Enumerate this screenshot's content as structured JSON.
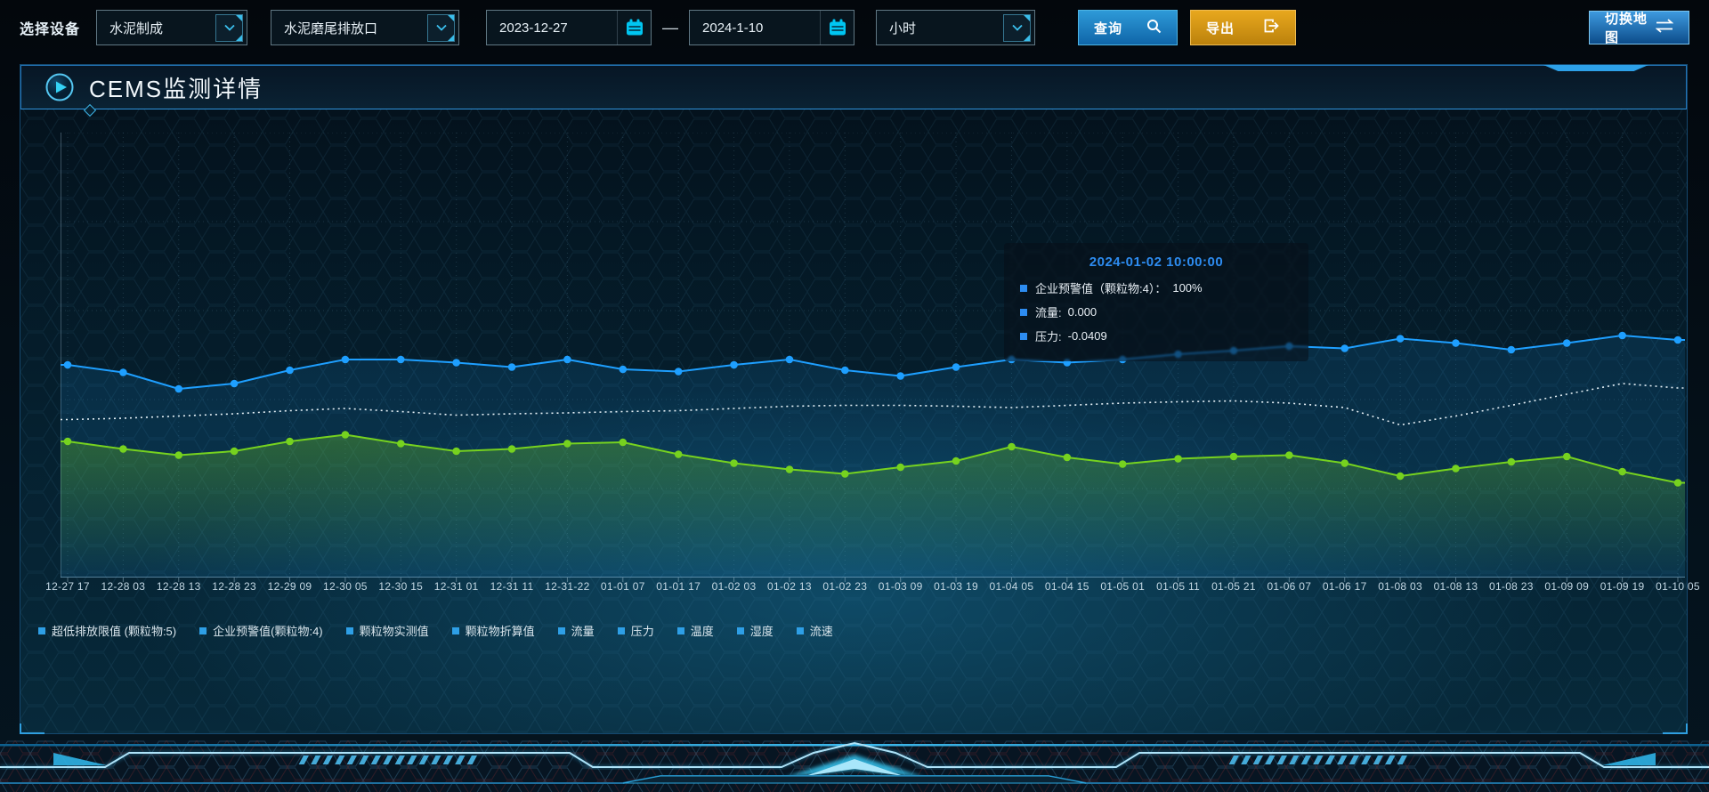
{
  "toolbar": {
    "device_label": "选择设备",
    "selects": [
      {
        "value": "水泥制成"
      },
      {
        "value": "水泥磨尾排放口"
      }
    ],
    "date_start": "2023-12-27",
    "date_separator": "—",
    "date_end": "2024-1-10",
    "interval_value": "小时",
    "query_button": "查询",
    "export_button": "导出",
    "switch_map_button": "切换地图"
  },
  "panel": {
    "title": "CEMS监测详情"
  },
  "tooltip": {
    "title": "2024-01-02 10:00:00",
    "marker_color": "#2d8cf0",
    "rows": [
      {
        "label": "企业预警值（颗粒物:4）：",
        "value": "100%"
      },
      {
        "label": "流量:",
        "value": "0.000"
      },
      {
        "label": "压力:",
        "value": "-0.0409"
      }
    ]
  },
  "chart_data": {
    "type": "line",
    "title": "CEMS监测详情",
    "xlabel": "",
    "ylabel": "",
    "ylim": [
      0,
      100
    ],
    "grid": true,
    "legend_position": "bottom",
    "x_labels": [
      "12-27 17",
      "12-28 03",
      "12-28 13",
      "12-28 23",
      "12-29 09",
      "12-30 05",
      "12-30 15",
      "12-31 01",
      "12-31 11",
      "12-31-22",
      "01-01 07",
      "01-01 17",
      "01-02 03",
      "01-02 13",
      "01-02 23",
      "01-03 09",
      "01-03 19",
      "01-04 05",
      "01-04 15",
      "01-05 01",
      "01-05 11",
      "01-05 21",
      "01-06 07",
      "01-06 17",
      "01-08 03",
      "01-08 13",
      "01-08 23",
      "01-09 09",
      "01-09 19",
      "01-10 05"
    ],
    "legend": [
      "超低排放限值 (颗粒物:5)",
      "企业预警值(颗粒物:4)",
      "颗粒物实测值",
      "颗粒物折算值",
      "流量",
      "压力",
      "温度",
      "湿度",
      "流速"
    ],
    "series": [
      {
        "name": "企业预警值(颗粒物:4)",
        "color": "#1e9fff",
        "style": "solid",
        "dots": true,
        "area": "flat",
        "values": [
          47.8,
          46.1,
          42.4,
          43.6,
          46.6,
          49.0,
          49.0,
          48.3,
          47.3,
          49.0,
          46.8,
          46.3,
          47.8,
          49.0,
          46.6,
          45.3,
          47.3,
          49.0,
          48.3,
          49.0,
          50.2,
          51.0,
          52.0,
          51.5,
          53.7,
          52.7,
          51.2,
          52.7,
          54.4,
          53.4
        ]
      },
      {
        "name": "颗粒物折算值",
        "color": "#e6f1f7",
        "style": "dotted",
        "dots": false,
        "area": null,
        "values": [
          35.5,
          35.8,
          36.3,
          36.8,
          37.5,
          38.0,
          37.3,
          36.5,
          36.8,
          37.0,
          37.3,
          37.5,
          38.0,
          38.5,
          38.7,
          38.7,
          38.5,
          38.2,
          38.7,
          39.2,
          39.5,
          39.7,
          39.2,
          38.2,
          34.3,
          36.3,
          38.7,
          41.2,
          43.6,
          42.6
        ]
      },
      {
        "name": "流量",
        "color": "#76d21f",
        "style": "solid",
        "dots": true,
        "area": "gradient",
        "values": [
          30.6,
          28.9,
          27.5,
          28.4,
          30.6,
          32.1,
          30.1,
          28.4,
          28.9,
          30.1,
          30.4,
          27.7,
          25.7,
          24.3,
          23.3,
          24.8,
          26.2,
          29.4,
          27.0,
          25.5,
          26.7,
          27.2,
          27.5,
          25.7,
          22.8,
          24.5,
          26.0,
          27.2,
          23.8,
          21.3
        ]
      }
    ]
  },
  "colors": {
    "accent": "#2d8cf0",
    "series_blue": "#1e9fff",
    "series_white": "#e6f1f7",
    "series_green": "#76d21f",
    "query_button": "#1778be",
    "export_button": "#d9980f",
    "calendar_icon": "#00c6f2",
    "panel_border": "#2273b5",
    "legend_marker": "#2e9fe6"
  },
  "icons": {
    "query": "search-icon",
    "export": "export-icon",
    "switch_map": "swap-arrows-icon",
    "date": "calendar-icon",
    "select": "chevron-down-icon",
    "panel_title": "play-icon"
  }
}
